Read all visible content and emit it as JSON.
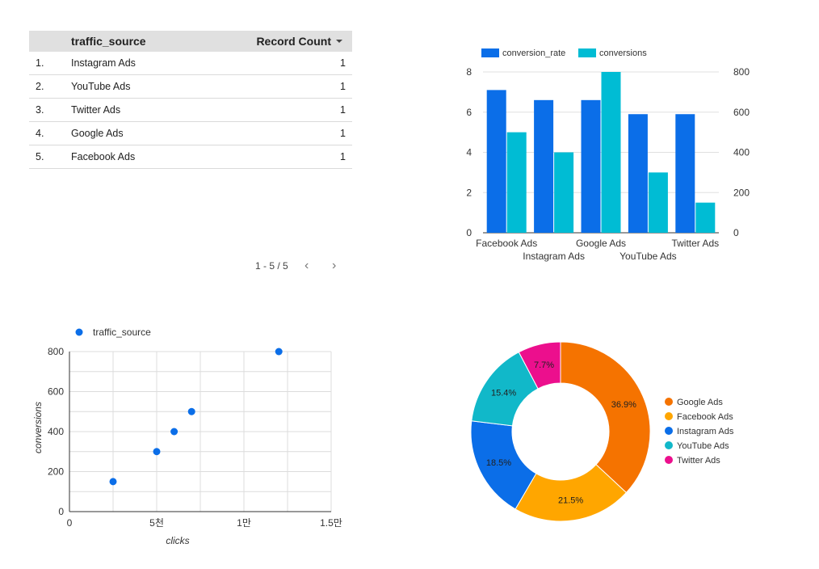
{
  "table": {
    "headers": {
      "source": "traffic_source",
      "count": "Record Count"
    },
    "rows": [
      {
        "num": "1.",
        "source": "Instagram Ads",
        "count": "1"
      },
      {
        "num": "2.",
        "source": "YouTube Ads",
        "count": "1"
      },
      {
        "num": "3.",
        "source": "Twitter Ads",
        "count": "1"
      },
      {
        "num": "4.",
        "source": "Google Ads",
        "count": "1"
      },
      {
        "num": "5.",
        "source": "Facebook Ads",
        "count": "1"
      }
    ],
    "pager": {
      "label": "1 - 5 / 5",
      "prev_icon": "chevron-left-icon",
      "next_icon": "chevron-right-icon"
    }
  },
  "chart_data": [
    {
      "type": "bar",
      "categories": [
        "Facebook Ads",
        "Instagram Ads",
        "Google Ads",
        "YouTube Ads",
        "Twitter Ads"
      ],
      "series": [
        {
          "name": "conversion_rate",
          "values": [
            7.1,
            6.6,
            6.6,
            5.9,
            5.9
          ],
          "axis": "left",
          "color": "#0b6ee8"
        },
        {
          "name": "conversions",
          "values": [
            500,
            400,
            800,
            300,
            150
          ],
          "axis": "right",
          "color": "#00bcd4"
        }
      ],
      "ylim_left": [
        0,
        8
      ],
      "yticks_left": [
        "0",
        "2",
        "4",
        "6",
        "8"
      ],
      "ylim_right": [
        0,
        800
      ],
      "yticks_right": [
        "0",
        "200",
        "400",
        "600",
        "800"
      ],
      "legend": "top-left",
      "grid": true
    },
    {
      "type": "scatter",
      "series": [
        {
          "name": "traffic_source",
          "color": "#0b6ee8",
          "points": [
            [
              2500,
              150
            ],
            [
              5000,
              300
            ],
            [
              6000,
              400
            ],
            [
              7000,
              500
            ],
            [
              12000,
              800
            ]
          ]
        }
      ],
      "xlabel": "clicks",
      "ylabel": "conversions",
      "xlim": [
        0,
        15000
      ],
      "xticks": [
        {
          "v": 0,
          "label": "0"
        },
        {
          "v": 5000,
          "label": "5천"
        },
        {
          "v": 10000,
          "label": "1만"
        },
        {
          "v": 15000,
          "label": "1.5만"
        }
      ],
      "ylim": [
        0,
        800
      ],
      "yticks": [
        {
          "v": 0,
          "label": "0"
        },
        {
          "v": 200,
          "label": "200"
        },
        {
          "v": 400,
          "label": "400"
        },
        {
          "v": 600,
          "label": "600"
        },
        {
          "v": 800,
          "label": "800"
        }
      ],
      "legend": "top-left",
      "grid": true
    },
    {
      "type": "pie",
      "donut": true,
      "slices": [
        {
          "name": "Google Ads",
          "value": 36.9,
          "label": "36.9%",
          "color": "#f57300"
        },
        {
          "name": "Facebook Ads",
          "value": 21.5,
          "label": "21.5%",
          "color": "#ffa600"
        },
        {
          "name": "Instagram Ads",
          "value": 18.5,
          "label": "18.5%",
          "color": "#0b6ee8"
        },
        {
          "name": "YouTube Ads",
          "value": 15.4,
          "label": "15.4%",
          "color": "#11b8c9"
        },
        {
          "name": "Twitter Ads",
          "value": 7.7,
          "label": "7.7%",
          "color": "#ec0f8d"
        }
      ],
      "legend": "right"
    }
  ]
}
